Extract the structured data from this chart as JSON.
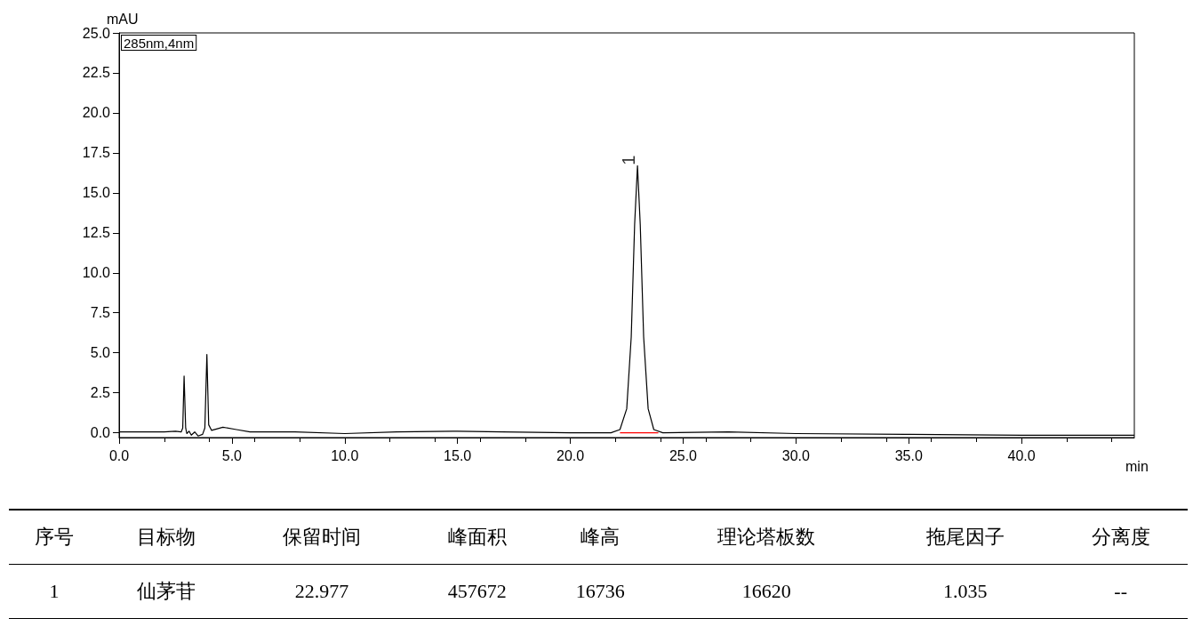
{
  "chart_data": [
    {
      "type": "line",
      "xlabel": "min",
      "ylabel": "mAU",
      "xlim": [
        0,
        45
      ],
      "xticks": [
        {
          "value": 0,
          "label": "0.0"
        },
        {
          "value": 5,
          "label": "5.0"
        },
        {
          "value": 10,
          "label": "10.0"
        },
        {
          "value": 15,
          "label": "15.0"
        },
        {
          "value": 20,
          "label": "20.0"
        },
        {
          "value": 25,
          "label": "25.0"
        },
        {
          "value": 30,
          "label": "30.0"
        },
        {
          "value": 35,
          "label": "35.0"
        },
        {
          "value": 40,
          "label": "40.0"
        }
      ],
      "ylim": [
        -0.3,
        25
      ],
      "yticks": [
        {
          "value": 0,
          "label": "0.0"
        },
        {
          "value": 2.5,
          "label": "2.5"
        },
        {
          "value": 5,
          "label": "5.0"
        },
        {
          "value": 7.5,
          "label": "7.5"
        },
        {
          "value": 10,
          "label": "10.0"
        },
        {
          "value": 12.5,
          "label": "12.5"
        },
        {
          "value": 15,
          "label": "15.0"
        },
        {
          "value": 17.5,
          "label": "17.5"
        },
        {
          "value": 20,
          "label": "20.0"
        },
        {
          "value": 22.5,
          "label": "22.5"
        },
        {
          "value": 25,
          "label": "25.0"
        }
      ],
      "grid": false,
      "marker": "none",
      "line_style": "solid",
      "series": [
        {
          "color": "#000000",
          "x": [
            0,
            1,
            2,
            2.5,
            2.75,
            2.82,
            2.88,
            2.95,
            3.0,
            3.1,
            3.2,
            3.35,
            3.5,
            3.7,
            3.8,
            3.89,
            3.97,
            4.1,
            4.6,
            5.2,
            5.8,
            7.8,
            10,
            12.3,
            15,
            17,
            20,
            21.8,
            22.2,
            22.5,
            22.7,
            22.85,
            22.977,
            23.1,
            23.25,
            23.45,
            23.7,
            24.1,
            27,
            30,
            35,
            40,
            45
          ],
          "values": [
            0.05,
            0.05,
            0.05,
            0.1,
            0.05,
            0.3,
            3.55,
            0.3,
            -0.05,
            0.1,
            -0.15,
            0.05,
            -0.2,
            -0.1,
            0.3,
            4.9,
            0.5,
            0.15,
            0.35,
            0.2,
            0.05,
            0.05,
            -0.05,
            0.05,
            0.1,
            0.05,
            0,
            0,
            0.2,
            1.5,
            6,
            13,
            16.7,
            13,
            6,
            1.5,
            0.2,
            0,
            0.05,
            -0.05,
            -0.1,
            -0.15,
            -0.15
          ]
        },
        {
          "color": "#ff0000",
          "x": [
            22.2,
            23.9
          ],
          "values": [
            0,
            0
          ]
        }
      ],
      "annotations": [
        "285nm,4nm",
        {
          "text": "1",
          "x": 22.977,
          "y": 16.7
        }
      ]
    },
    {
      "type": "other",
      "annotations": [
        "序号",
        "目标物",
        "保留时间",
        "峰面积",
        "峰高",
        "理论塔板数",
        "拖尾因子",
        "分离度",
        "1",
        "仙茅苷",
        "22.977",
        "457672",
        "16736",
        "16620",
        "1.035",
        "--"
      ]
    }
  ]
}
